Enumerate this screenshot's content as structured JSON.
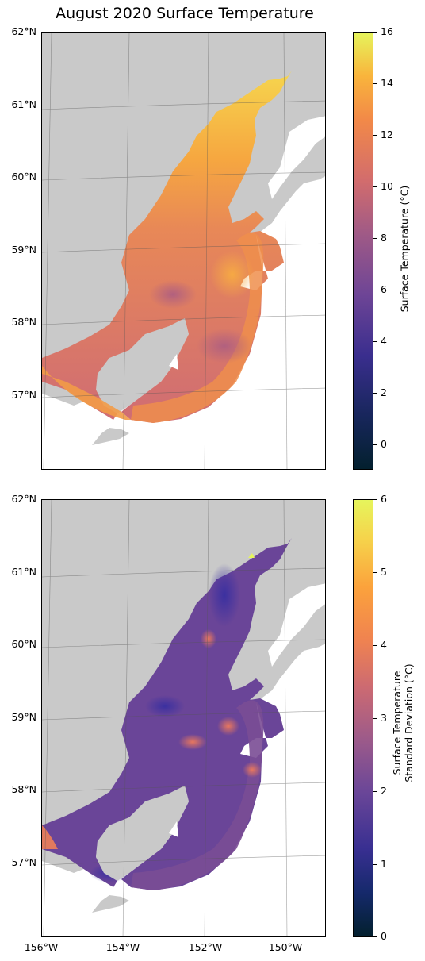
{
  "title": "August 2020 Surface Temperature",
  "lat_labels": [
    "62°N",
    "61°N",
    "60°N",
    "59°N",
    "58°N",
    "57°N"
  ],
  "lon_labels": [
    "156°W",
    "154°W",
    "152°W",
    "150°W"
  ],
  "top_colorbar": {
    "label": "Surface Temperature (°C)",
    "ticks": [
      "16",
      "14",
      "12",
      "10",
      "8",
      "6",
      "4",
      "2",
      "0"
    ],
    "range": [
      -1,
      16
    ],
    "colormap": "thermal"
  },
  "bottom_colorbar": {
    "label_line1": "Surface Temperature",
    "label_line2": "Standard Deviation (°C)",
    "ticks": [
      "6",
      "5",
      "4",
      "3",
      "2",
      "1",
      "0"
    ],
    "range": [
      0,
      6
    ],
    "colormap": "thermal"
  },
  "colors": {
    "land": "#c9c9c9",
    "ocean_background": "#ffffff",
    "top_water_main": "#cf6c74",
    "top_water_warm": "#f39a48",
    "bottom_water_main": "#6b4598",
    "bottom_water_warm": "#d0706a"
  }
}
